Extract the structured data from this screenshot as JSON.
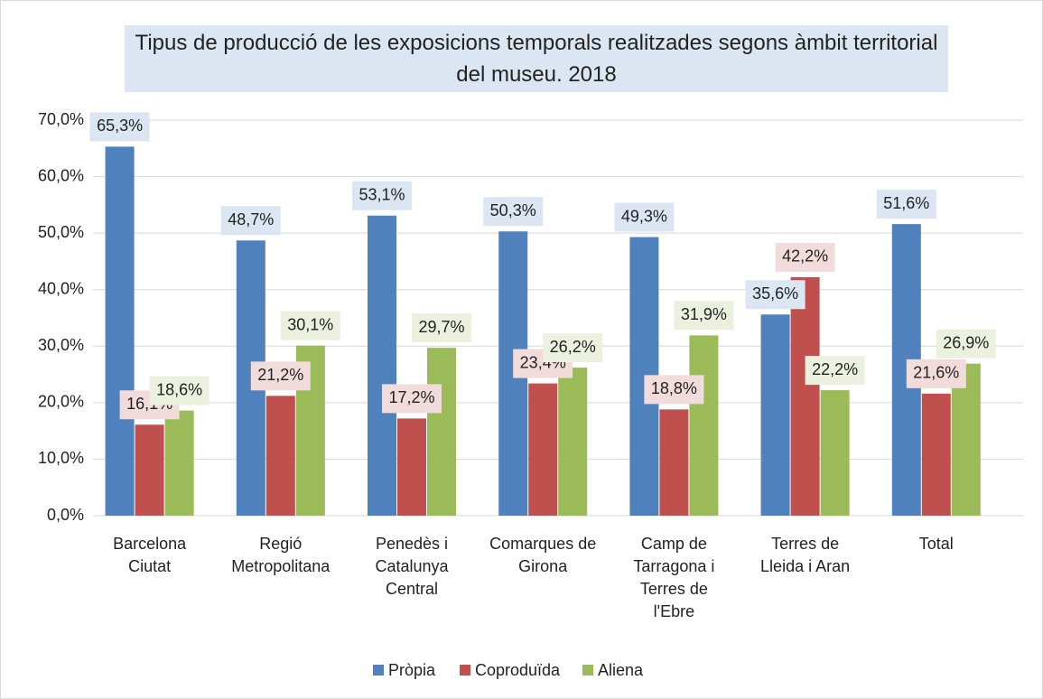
{
  "chart_data": {
    "type": "bar",
    "title": "Tipus de producció de les exposicions temporals realitzades segons àmbit territorial del museu. 2018",
    "categories": [
      [
        "Barcelona",
        "Ciutat"
      ],
      [
        "Regió",
        "Metropolitana"
      ],
      [
        "Penedès i",
        "Catalunya",
        "Central"
      ],
      [
        "Comarques de",
        "Girona"
      ],
      [
        "Camp de",
        "Tarragona i",
        "Terres de",
        "l'Ebre"
      ],
      [
        "Terres de",
        "Lleida i Aran"
      ],
      [
        "Total"
      ]
    ],
    "series": [
      {
        "name": "Pròpia",
        "color": "#4f81bd",
        "values": [
          65.3,
          48.7,
          53.1,
          50.3,
          49.3,
          35.6,
          51.6
        ],
        "value_labels": [
          "65,3%",
          "48,7%",
          "53,1%",
          "50,3%",
          "49,3%",
          "35,6%",
          "51,6%"
        ]
      },
      {
        "name": "Coproduïda",
        "color": "#c0504d",
        "values": [
          16.1,
          21.2,
          17.2,
          23.4,
          18.8,
          42.2,
          21.6
        ],
        "value_labels": [
          "16,1%",
          "21,2%",
          "17,2%",
          "23,4%",
          "18,8%",
          "42,2%",
          "21,6%"
        ]
      },
      {
        "name": "Aliena",
        "color": "#9bbb59",
        "values": [
          18.6,
          30.1,
          29.7,
          26.2,
          31.9,
          22.2,
          26.9
        ],
        "value_labels": [
          "18,6%",
          "30,1%",
          "29,7%",
          "26,2%",
          "31,9%",
          "22,2%",
          "26,9%"
        ]
      }
    ],
    "ylim": [
      0,
      70
    ],
    "yticks": [
      {
        "value": 0,
        "label": "0,0%"
      },
      {
        "value": 10,
        "label": "10,0%"
      },
      {
        "value": 20,
        "label": "20,0%"
      },
      {
        "value": 30,
        "label": "30,0%"
      },
      {
        "value": 40,
        "label": "40,0%"
      },
      {
        "value": 50,
        "label": "50,0%"
      },
      {
        "value": 60,
        "label": "60,0%"
      },
      {
        "value": 70,
        "label": "70,0%"
      }
    ],
    "grid": true,
    "legend": "bottom"
  }
}
